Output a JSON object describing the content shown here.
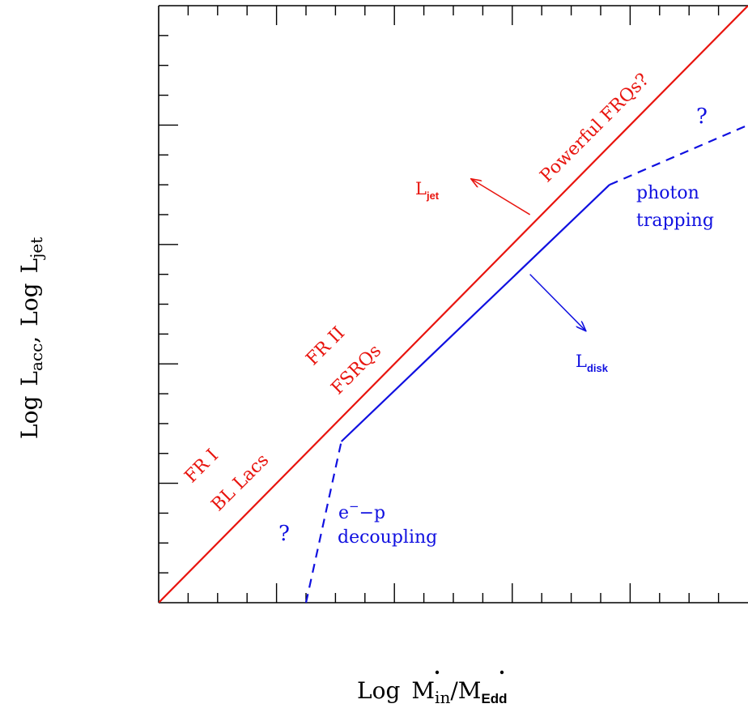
{
  "chart_data": {
    "type": "line",
    "title": "",
    "xlabel": {
      "prefix": "Log",
      "num": "M",
      "num_sub": "in",
      "den": "M",
      "den_sub": "Edd"
    },
    "ylabel": {
      "prefix": "Log",
      "a": "L",
      "a_sub": "acc",
      "sep": ",",
      "b": "L",
      "b_sub": "jet"
    },
    "xlim": [
      0,
      10
    ],
    "ylim": [
      0,
      10
    ],
    "grid": false,
    "ticks": {
      "minor_step": 0.5,
      "major_step": 2
    },
    "series": [
      {
        "id": "jet",
        "style": "solid",
        "color": "#e8140e",
        "x": [
          0,
          10
        ],
        "y": [
          0,
          10
        ]
      },
      {
        "id": "disk",
        "style": "solid",
        "color": "#1010e0",
        "x": [
          3.1,
          7.65
        ],
        "y": [
          2.7,
          7.0
        ]
      },
      {
        "id": "disk-low",
        "style": "dashed",
        "color": "#1010e0",
        "x": [
          2.5,
          3.1
        ],
        "y": [
          0,
          2.7
        ]
      },
      {
        "id": "disk-high",
        "style": "dashed",
        "color": "#1010e0",
        "x": [
          7.65,
          10
        ],
        "y": [
          7.0,
          8.0
        ]
      }
    ],
    "annotations": {
      "ljet": {
        "main": "L",
        "sub": "jet"
      },
      "ldisk": {
        "main": "L",
        "sub": "disk"
      },
      "fr1": "FR I",
      "bllacs": "BL Lacs",
      "fr2": "FR II",
      "fsrqs": "FSRQs",
      "powerful": "Powerful FRQs?",
      "q_low": "?",
      "q_high": "?",
      "ep": {
        "e": "e",
        "sup": "−",
        "rest": "−p"
      },
      "decoupling": "decoupling",
      "photon": "photon",
      "trapping": "trapping"
    },
    "arrows": [
      {
        "id": "ljet-arrow",
        "from": [
          6.3,
          6.5
        ],
        "to": [
          5.3,
          7.1
        ]
      },
      {
        "id": "ldisk-arrow",
        "from": [
          6.3,
          5.5
        ],
        "to": [
          7.25,
          4.55
        ]
      }
    ],
    "colors": {
      "jet": "#e8140e",
      "disk": "#1010e0",
      "axis": "#000000"
    }
  }
}
